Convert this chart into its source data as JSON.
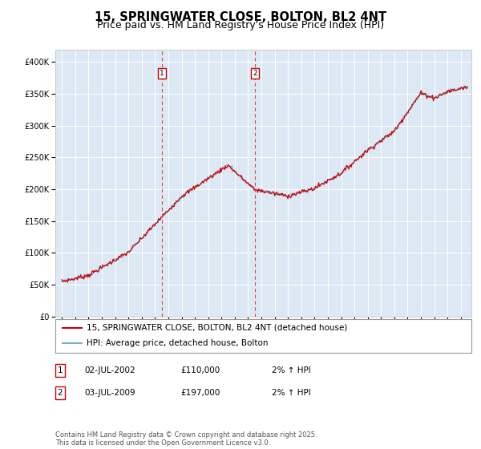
{
  "title": "15, SPRINGWATER CLOSE, BOLTON, BL2 4NT",
  "subtitle": "Price paid vs. HM Land Registry's House Price Index (HPI)",
  "legend_line1": "15, SPRINGWATER CLOSE, BOLTON, BL2 4NT (detached house)",
  "legend_line2": "HPI: Average price, detached house, Bolton",
  "transaction1_label": "1",
  "transaction1_date": "02-JUL-2002",
  "transaction1_price": "£110,000",
  "transaction1_hpi": "2% ↑ HPI",
  "transaction2_label": "2",
  "transaction2_date": "03-JUL-2009",
  "transaction2_price": "£197,000",
  "transaction2_hpi": "2% ↑ HPI",
  "footer": "Contains HM Land Registry data © Crown copyright and database right 2025.\nThis data is licensed under the Open Government Licence v3.0.",
  "transaction1_x": 2002.5,
  "transaction2_x": 2009.5,
  "ylim_min": 0,
  "ylim_max": 420000,
  "xlim_min": 1994.5,
  "xlim_max": 2025.8,
  "background_color": "#ffffff",
  "plot_background_color": "#dce9f5",
  "grid_color": "#ffffff",
  "red_line_color": "#cc0000",
  "blue_line_color": "#7aabcc",
  "transaction_marker_color": "#cc0000",
  "transaction_line_color": "#dd4444",
  "title_fontsize": 10.5,
  "subtitle_fontsize": 9,
  "legend_fontsize": 7.5,
  "footer_fontsize": 6
}
